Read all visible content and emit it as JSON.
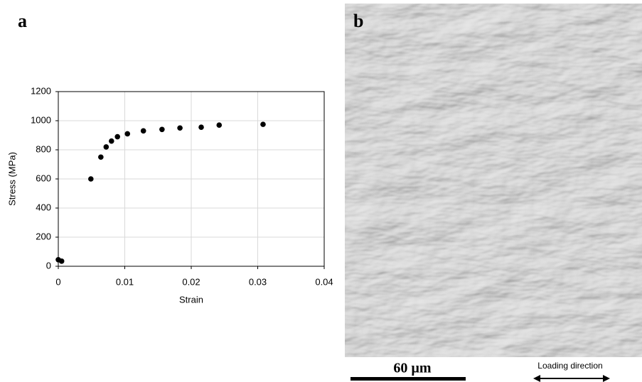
{
  "panels": {
    "a": "a",
    "b": "b"
  },
  "scale_bar": "60 µm",
  "loading_direction": "Loading direction",
  "chart_data": {
    "type": "scatter",
    "x_label": "Strain",
    "y_label": "Stress (MPa)",
    "x": [
      0,
      0.0005,
      0.0049,
      0.0064,
      0.0072,
      0.008,
      0.0089,
      0.0104,
      0.0128,
      0.0156,
      0.0183,
      0.0215,
      0.0242,
      0.0308
    ],
    "values": [
      45,
      35,
      600,
      750,
      820,
      860,
      890,
      910,
      930,
      940,
      950,
      955,
      970,
      975
    ],
    "color": "#000000",
    "xlim": [
      0,
      0.04
    ],
    "xticks": [
      0,
      0.01,
      0.02,
      0.03,
      0.04
    ],
    "ylim": [
      0,
      1200
    ],
    "yticks": [
      0,
      200,
      400,
      600,
      800,
      1000,
      1200
    ],
    "grid": true
  }
}
